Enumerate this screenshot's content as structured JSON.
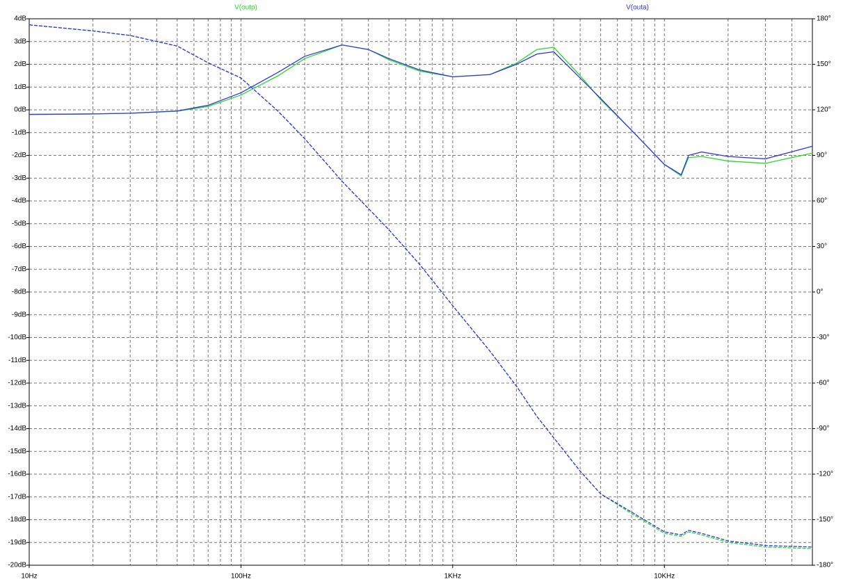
{
  "chart_data": {
    "type": "line",
    "x_log": true,
    "grid": true,
    "x": [
      10,
      20,
      30,
      50,
      70,
      100,
      150,
      200,
      300,
      400,
      500,
      700,
      1000,
      1500,
      2000,
      2500,
      3000,
      4000,
      5000,
      7000,
      10000,
      12000,
      13000,
      15000,
      20000,
      30000,
      50000
    ],
    "xlim": [
      10,
      50000
    ],
    "xticks": [
      {
        "value": 10,
        "label": "10Hz"
      },
      {
        "value": 100,
        "label": "100Hz"
      },
      {
        "value": 1000,
        "label": "1KHz"
      },
      {
        "value": 10000,
        "label": "10KHz"
      }
    ],
    "ylim": [
      -20,
      4
    ],
    "yticks": [
      {
        "value": 4,
        "label": "4dB"
      },
      {
        "value": 3,
        "label": "3dB"
      },
      {
        "value": 2,
        "label": "2dB"
      },
      {
        "value": 1,
        "label": "1dB"
      },
      {
        "value": 0,
        "label": "0dB"
      },
      {
        "value": -1,
        "label": "-1dB"
      },
      {
        "value": -2,
        "label": "-2dB"
      },
      {
        "value": -3,
        "label": "-3dB"
      },
      {
        "value": -4,
        "label": "-4dB"
      },
      {
        "value": -5,
        "label": "-5dB"
      },
      {
        "value": -6,
        "label": "-6dB"
      },
      {
        "value": -7,
        "label": "-7dB"
      },
      {
        "value": -8,
        "label": "-8dB"
      },
      {
        "value": -9,
        "label": "-9dB"
      },
      {
        "value": -10,
        "label": "-10dB"
      },
      {
        "value": -11,
        "label": "-11dB"
      },
      {
        "value": -12,
        "label": "-12dB"
      },
      {
        "value": -13,
        "label": "-13dB"
      },
      {
        "value": -14,
        "label": "-14dB"
      },
      {
        "value": -15,
        "label": "-15dB"
      },
      {
        "value": -16,
        "label": "-16dB"
      },
      {
        "value": -17,
        "label": "-17dB"
      },
      {
        "value": -18,
        "label": "-18dB"
      },
      {
        "value": -19,
        "label": "-19dB"
      },
      {
        "value": -20,
        "label": "-20dB"
      }
    ],
    "y2lim": [
      -180,
      180
    ],
    "y2ticks": [
      {
        "value": 180,
        "label": "180°"
      },
      {
        "value": 150,
        "label": "150°"
      },
      {
        "value": 120,
        "label": "120°"
      },
      {
        "value": 90,
        "label": "90°"
      },
      {
        "value": 60,
        "label": "60°"
      },
      {
        "value": 30,
        "label": "30°"
      },
      {
        "value": 0,
        "label": "0°"
      },
      {
        "value": -30,
        "label": "-30°"
      },
      {
        "value": -60,
        "label": "-60°"
      },
      {
        "value": -90,
        "label": "-90°"
      },
      {
        "value": -120,
        "label": "-120°"
      },
      {
        "value": -150,
        "label": "-150°"
      },
      {
        "value": -180,
        "label": "-180°"
      }
    ],
    "series": [
      {
        "name": "V(outp)",
        "color": "#22dd22",
        "values": [
          -0.2,
          -0.18,
          -0.15,
          -0.06,
          0.15,
          0.65,
          1.5,
          2.25,
          2.85,
          2.65,
          2.2,
          1.7,
          1.45,
          1.55,
          2.05,
          2.65,
          2.75,
          1.5,
          0.45,
          -0.9,
          -2.4,
          -2.9,
          -2.1,
          -2.05,
          -2.25,
          -2.35,
          -1.9
        ],
        "phase": [
          176,
          172,
          169,
          162,
          151,
          141,
          119,
          101,
          73,
          55,
          41,
          18,
          -9,
          -39,
          -62,
          -82,
          -96,
          -118,
          -133,
          -146,
          -159,
          -161,
          -158,
          -160,
          -165,
          -168,
          -169
        ]
      },
      {
        "name": "V(outa)",
        "color": "#3333ee",
        "values": [
          -0.2,
          -0.18,
          -0.15,
          -0.05,
          0.2,
          0.75,
          1.65,
          2.35,
          2.85,
          2.65,
          2.25,
          1.75,
          1.45,
          1.55,
          2.0,
          2.45,
          2.55,
          1.4,
          0.5,
          -0.9,
          -2.4,
          -2.85,
          -2.0,
          -1.85,
          -2.05,
          -2.15,
          -1.6
        ],
        "phase": [
          176,
          172,
          169,
          162,
          151,
          141,
          119,
          101,
          73,
          55,
          41,
          18,
          -9,
          -39,
          -62,
          -82,
          -96,
          -118,
          -133,
          -145,
          -158,
          -160,
          -157,
          -159,
          -164,
          -167,
          -168
        ]
      }
    ]
  }
}
